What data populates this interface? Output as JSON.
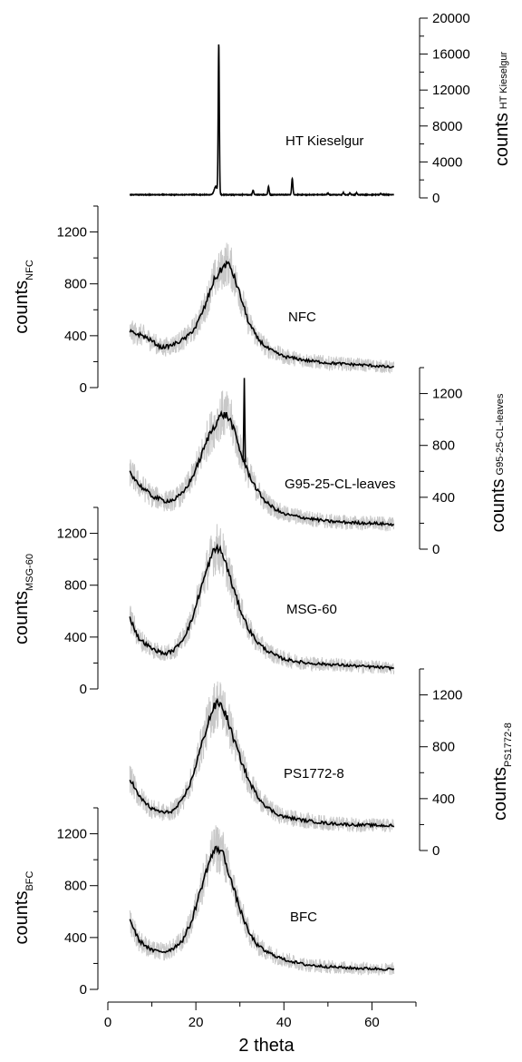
{
  "chart_data": {
    "type": "line",
    "description_free": true,
    "xlabel": "2 theta",
    "xlim": [
      0,
      70
    ],
    "xticks": [
      0,
      20,
      40,
      60
    ],
    "x_range": [
      5,
      65
    ],
    "panels": [
      {
        "id": "ht-kieselgur",
        "label": "HT Kieselgur",
        "ylabel_main": "counts",
        "ylabel_sub": "HT Kieselgur",
        "axis_side": "right",
        "ylim": [
          0,
          20000
        ],
        "yticks": [
          0,
          4000,
          8000,
          12000,
          16000,
          20000
        ],
        "baseline": 350,
        "peaks": [
          {
            "x": 24.5,
            "height": 900,
            "width": 0.5
          },
          {
            "x": 25.2,
            "height": 16700,
            "width": 0.18
          },
          {
            "x": 33.0,
            "height": 500,
            "width": 0.2
          },
          {
            "x": 36.5,
            "height": 900,
            "width": 0.2
          },
          {
            "x": 41.9,
            "height": 1800,
            "width": 0.2
          },
          {
            "x": 50.0,
            "height": 200,
            "width": 0.2
          },
          {
            "x": 53.5,
            "height": 250,
            "width": 0.2
          },
          {
            "x": 55.0,
            "height": 200,
            "width": 0.2
          },
          {
            "x": 56.5,
            "height": 200,
            "width": 0.2
          },
          {
            "x": 62.0,
            "height": 150,
            "width": 0.2
          }
        ]
      },
      {
        "id": "nfc",
        "label": "NFC",
        "ylabel_main": "counts",
        "ylabel_sub": "NFC",
        "axis_side": "left",
        "ylim": [
          0,
          1400
        ],
        "yticks": [
          0,
          400,
          800,
          1200
        ],
        "smoothed": {
          "x": [
            5,
            8,
            10,
            12,
            14,
            16,
            18,
            20,
            22,
            24,
            26,
            27,
            28,
            30,
            32,
            34,
            36,
            38,
            40,
            45,
            50,
            55,
            60,
            65
          ],
          "y": [
            430,
            400,
            360,
            310,
            320,
            350,
            390,
            470,
            620,
            820,
            920,
            960,
            920,
            720,
            500,
            380,
            310,
            270,
            240,
            210,
            190,
            180,
            170,
            155
          ]
        }
      },
      {
        "id": "g95-25-cl-leaves",
        "label": "G95-25-CL-leaves",
        "ylabel_main": "counts",
        "ylabel_sub": "G95-25-CL-leaves",
        "axis_side": "right",
        "ylim": [
          0,
          1400
        ],
        "yticks": [
          0,
          400,
          800,
          1200
        ],
        "spike": {
          "x": 31.0,
          "y": 1320
        },
        "smoothed": {
          "x": [
            5,
            7,
            10,
            13,
            15,
            17,
            19,
            21,
            23,
            25,
            26,
            27,
            28,
            29,
            30,
            32,
            34,
            36,
            38,
            40,
            45,
            50,
            55,
            60,
            65
          ],
          "y": [
            600,
            500,
            410,
            370,
            380,
            430,
            540,
            700,
            880,
            1000,
            1040,
            1030,
            980,
            880,
            760,
            580,
            450,
            360,
            310,
            270,
            240,
            215,
            205,
            200,
            190
          ]
        }
      },
      {
        "id": "msg-60",
        "label": "MSG-60",
        "ylabel_main": "counts",
        "ylabel_sub": "MSG-60",
        "axis_side": "left",
        "ylim": [
          0,
          1400
        ],
        "yticks": [
          0,
          400,
          800,
          1200
        ],
        "smoothed": {
          "x": [
            5,
            7,
            10,
            13,
            15,
            17,
            19,
            21,
            23,
            24,
            25,
            26,
            27,
            28,
            30,
            32,
            34,
            36,
            38,
            40,
            45,
            50,
            55,
            60,
            65
          ],
          "y": [
            550,
            390,
            310,
            270,
            300,
            380,
            520,
            760,
            970,
            1060,
            1090,
            1040,
            950,
            830,
            620,
            460,
            360,
            300,
            260,
            230,
            200,
            190,
            180,
            170,
            160
          ]
        }
      },
      {
        "id": "ps1772-8",
        "label": "PS1772-8",
        "ylabel_main": "counts",
        "ylabel_sub": "PS1772-8",
        "axis_side": "right",
        "ylim": [
          0,
          1400
        ],
        "yticks": [
          0,
          400,
          800,
          1200
        ],
        "smoothed": {
          "x": [
            5,
            7,
            10,
            13,
            15,
            17,
            19,
            21,
            23,
            24,
            25,
            26,
            27,
            28,
            30,
            32,
            34,
            36,
            38,
            40,
            45,
            50,
            55,
            60,
            65
          ],
          "y": [
            560,
            420,
            320,
            290,
            310,
            390,
            540,
            780,
            1010,
            1100,
            1140,
            1110,
            1030,
            920,
            720,
            540,
            420,
            340,
            290,
            260,
            230,
            210,
            200,
            195,
            190
          ]
        }
      },
      {
        "id": "bfc",
        "label": "BFC",
        "ylabel_main": "counts",
        "ylabel_sub": "BFC",
        "axis_side": "left",
        "ylim": [
          0,
          1400
        ],
        "yticks": [
          0,
          400,
          800,
          1200
        ],
        "smoothed": {
          "x": [
            5,
            7,
            10,
            13,
            15,
            17,
            19,
            21,
            23,
            24,
            25,
            26,
            27,
            28,
            30,
            32,
            34,
            36,
            38,
            40,
            45,
            50,
            55,
            60,
            65
          ],
          "y": [
            540,
            380,
            300,
            290,
            320,
            380,
            520,
            760,
            980,
            1060,
            1090,
            1060,
            960,
            840,
            620,
            440,
            340,
            290,
            260,
            230,
            190,
            175,
            165,
            160,
            155
          ]
        }
      }
    ]
  }
}
